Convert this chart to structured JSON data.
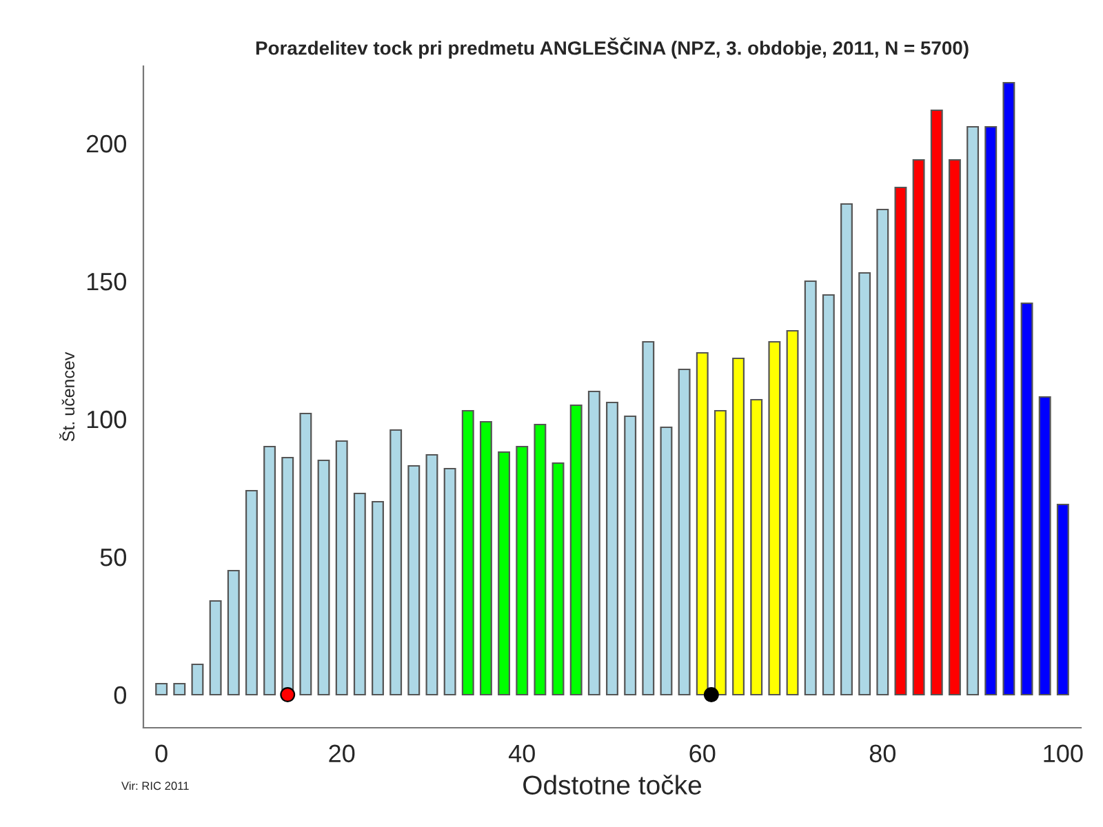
{
  "chart_data": {
    "type": "bar",
    "title": "Porazdelitev tock pri predmetu ANGLEŠČINA (NPZ, 3. obdobje, 2011, N = 5700)",
    "xlabel": "Odstotne točke",
    "ylabel": "Št. učencev",
    "x": [
      0,
      2,
      4,
      6,
      8,
      10,
      12,
      14,
      16,
      18,
      20,
      22,
      24,
      26,
      28,
      30,
      32,
      34,
      36,
      38,
      40,
      42,
      44,
      46,
      48,
      50,
      52,
      54,
      56,
      58,
      60,
      62,
      64,
      66,
      68,
      70,
      72,
      74,
      76,
      78,
      80,
      82,
      84,
      86,
      88,
      90,
      92,
      94,
      96,
      98,
      100
    ],
    "series": [
      {
        "values": [
          4,
          4,
          11,
          34,
          45,
          74,
          90,
          86,
          102,
          85,
          92,
          73,
          70,
          96,
          83,
          87,
          82,
          103,
          99,
          88,
          90,
          98,
          84,
          105,
          110,
          106,
          101,
          128,
          97,
          118,
          124,
          103,
          122,
          107,
          128,
          132,
          150,
          145,
          178,
          153,
          176,
          184,
          194,
          212,
          194,
          206,
          206,
          222,
          142,
          108,
          69
        ],
        "colors": [
          "#add8e6",
          "#add8e6",
          "#add8e6",
          "#add8e6",
          "#add8e6",
          "#add8e6",
          "#add8e6",
          "#add8e6",
          "#add8e6",
          "#add8e6",
          "#add8e6",
          "#add8e6",
          "#add8e6",
          "#add8e6",
          "#add8e6",
          "#add8e6",
          "#add8e6",
          "#00ff00",
          "#00ff00",
          "#00ff00",
          "#00ff00",
          "#00ff00",
          "#00ff00",
          "#00ff00",
          "#add8e6",
          "#add8e6",
          "#add8e6",
          "#add8e6",
          "#add8e6",
          "#add8e6",
          "#ffff00",
          "#ffff00",
          "#ffff00",
          "#ffff00",
          "#ffff00",
          "#ffff00",
          "#add8e6",
          "#add8e6",
          "#add8e6",
          "#add8e6",
          "#add8e6",
          "#ff0000",
          "#ff0000",
          "#ff0000",
          "#ff0000",
          "#add8e6",
          "#0000ff",
          "#0000ff",
          "#0000ff",
          "#0000ff",
          "#0000ff"
        ]
      },
      {
        "type": "scatter",
        "x": [
          14
        ],
        "values": [
          0
        ],
        "color": "#ff0000"
      },
      {
        "type": "scatter",
        "x": [
          61
        ],
        "values": [
          0
        ],
        "color": "#000000"
      }
    ],
    "xlim": [
      -2,
      102
    ],
    "xticks": [
      0,
      20,
      40,
      60,
      80,
      100
    ],
    "ylim": [
      -12,
      228
    ],
    "yticks": [
      0,
      50,
      100,
      150,
      200
    ],
    "grid": false,
    "legend": false,
    "marker": "circle",
    "annotations": [
      "Vir: RIC 2011"
    ]
  }
}
